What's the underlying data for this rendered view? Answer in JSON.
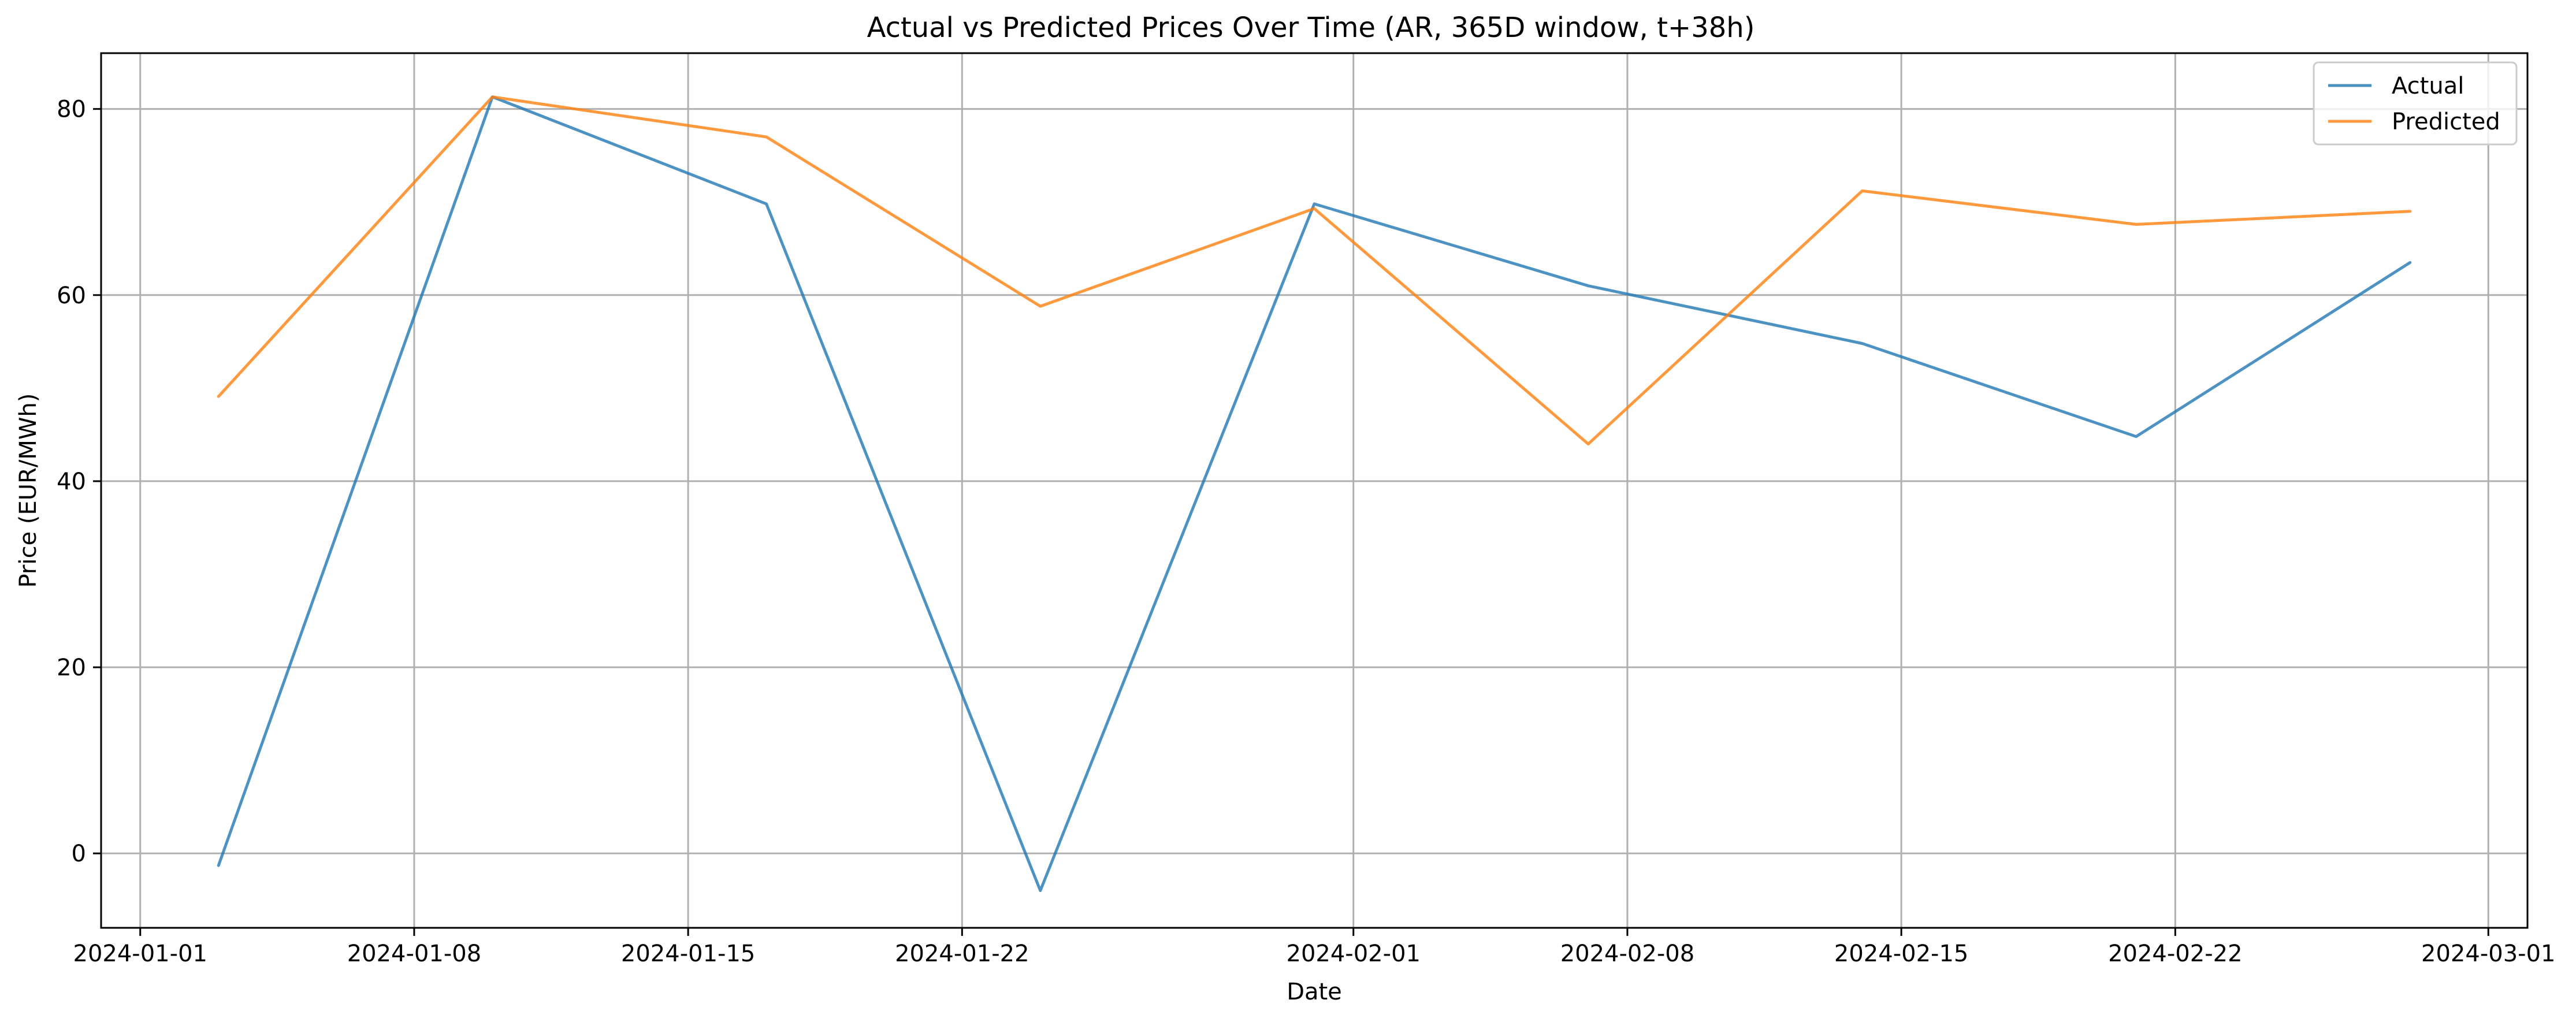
{
  "chart_data": {
    "type": "line",
    "title": "Actual vs Predicted Prices Over Time (AR, 365D window, t+38h)",
    "xlabel": "Date",
    "ylabel": "Price (EUR/MWh)",
    "x": [
      "2024-01-03",
      "2024-01-10",
      "2024-01-17",
      "2024-01-24",
      "2024-01-31",
      "2024-02-07",
      "2024-02-14",
      "2024-02-21",
      "2024-02-28"
    ],
    "series": [
      {
        "name": "Actual",
        "color": "#1f77b4",
        "values": [
          -1.3,
          81.3,
          69.8,
          -4.0,
          69.8,
          61.0,
          54.8,
          44.8,
          63.5
        ]
      },
      {
        "name": "Predicted",
        "color": "#ff7f0e",
        "values": [
          49.1,
          81.3,
          77.0,
          58.8,
          69.3,
          44.0,
          71.2,
          67.6,
          69.0
        ]
      }
    ],
    "xlim": [
      "2023-12-31",
      "2024-03-02"
    ],
    "ylim": [
      -8,
      86
    ],
    "x_ticks": [
      "2024-01-01",
      "2024-01-08",
      "2024-01-15",
      "2024-01-22",
      "2024-02-01",
      "2024-02-08",
      "2024-02-15",
      "2024-02-22",
      "2024-03-01"
    ],
    "y_ticks": [
      0,
      20,
      40,
      60,
      80
    ],
    "grid": true,
    "legend_position": "top-right"
  }
}
